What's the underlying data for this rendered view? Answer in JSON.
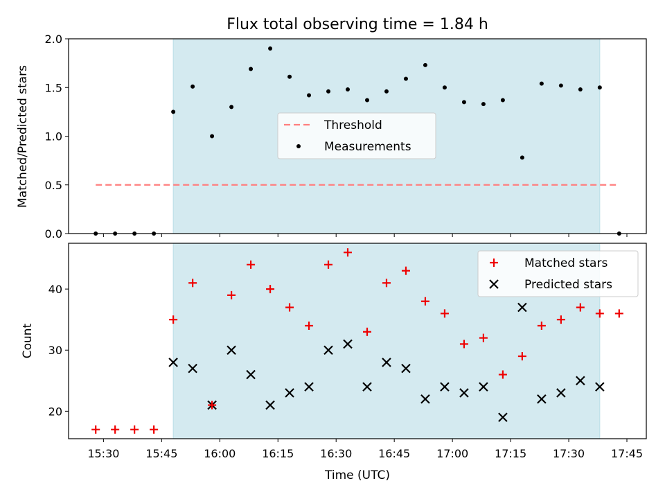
{
  "chart_data": [
    {
      "type": "scatter",
      "title": "Flux total observing time = 1.84 h",
      "xlabel": "",
      "ylabel": "Matched/Predicted stars",
      "ylim": [
        0,
        2.0
      ],
      "yticks": [
        "0.0",
        "0.5",
        "1.0",
        "1.5",
        "2.0"
      ],
      "shaded_interval": {
        "start": "15:48",
        "end": "17:38"
      },
      "threshold": {
        "name": "Threshold",
        "value": 0.5,
        "x_start": "15:28",
        "x_end": "17:43",
        "color": "#ff7f7f",
        "style": "dashed"
      },
      "legend": {
        "placement": "center",
        "entries": [
          "Threshold",
          "Measurements"
        ]
      },
      "series": [
        {
          "name": "Measurements",
          "color": "#000000",
          "marker": "dot",
          "x": [
            "15:28",
            "15:33",
            "15:38",
            "15:43",
            "15:48",
            "15:53",
            "15:58",
            "16:03",
            "16:08",
            "16:13",
            "16:18",
            "16:23",
            "16:28",
            "16:33",
            "16:38",
            "16:43",
            "16:48",
            "16:53",
            "16:58",
            "17:03",
            "17:08",
            "17:13",
            "17:18",
            "17:23",
            "17:28",
            "17:33",
            "17:38",
            "17:43"
          ],
          "y": [
            0,
            0,
            0,
            0,
            1.25,
            1.51,
            1.0,
            1.3,
            1.69,
            1.9,
            1.61,
            1.42,
            1.46,
            1.48,
            1.37,
            1.46,
            1.59,
            1.73,
            1.5,
            1.35,
            1.33,
            1.37,
            0.78,
            1.54,
            1.52,
            1.48,
            1.5,
            0
          ]
        }
      ]
    },
    {
      "type": "scatter",
      "title": "",
      "xlabel": "Time (UTC)",
      "ylabel": "Count",
      "ylim": [
        15.5,
        47.5
      ],
      "yticks": [
        "20",
        "30",
        "40"
      ],
      "xticks": [
        "15:30",
        "15:45",
        "16:00",
        "16:15",
        "16:30",
        "16:45",
        "17:00",
        "17:15",
        "17:30",
        "17:45"
      ],
      "xlim": [
        "15:21",
        "17:50"
      ],
      "shaded_interval": {
        "start": "15:48",
        "end": "17:38"
      },
      "shade_color": "#d4eaf0",
      "legend": {
        "placement": "top-right",
        "entries": [
          "Matched stars",
          "Predicted stars"
        ]
      },
      "series": [
        {
          "name": "Matched stars",
          "color": "#ee0000",
          "marker": "plus",
          "x": [
            "15:28",
            "15:33",
            "15:38",
            "15:43",
            "15:48",
            "15:53",
            "15:58",
            "16:03",
            "16:08",
            "16:13",
            "16:18",
            "16:23",
            "16:28",
            "16:33",
            "16:38",
            "16:43",
            "16:48",
            "16:53",
            "16:58",
            "17:03",
            "17:08",
            "17:13",
            "17:18",
            "17:23",
            "17:28",
            "17:33",
            "17:38",
            "17:43"
          ],
          "y": [
            17,
            17,
            17,
            17,
            35,
            41,
            21,
            39,
            44,
            40,
            37,
            34,
            44,
            46,
            33,
            41,
            43,
            38,
            36,
            31,
            32,
            26,
            29,
            34,
            35,
            37,
            36,
            36
          ]
        },
        {
          "name": "Predicted stars",
          "color": "#000000",
          "marker": "x",
          "x": [
            "15:48",
            "15:53",
            "15:58",
            "16:03",
            "16:08",
            "16:13",
            "16:18",
            "16:23",
            "16:28",
            "16:33",
            "16:38",
            "16:43",
            "16:48",
            "16:53",
            "16:58",
            "17:03",
            "17:08",
            "17:13",
            "17:18",
            "17:23",
            "17:28",
            "17:33",
            "17:38"
          ],
          "y": [
            28,
            27,
            21,
            30,
            26,
            21,
            23,
            24,
            30,
            31,
            24,
            28,
            27,
            22,
            24,
            23,
            24,
            19,
            37,
            22,
            23,
            25,
            24
          ]
        }
      ]
    }
  ]
}
